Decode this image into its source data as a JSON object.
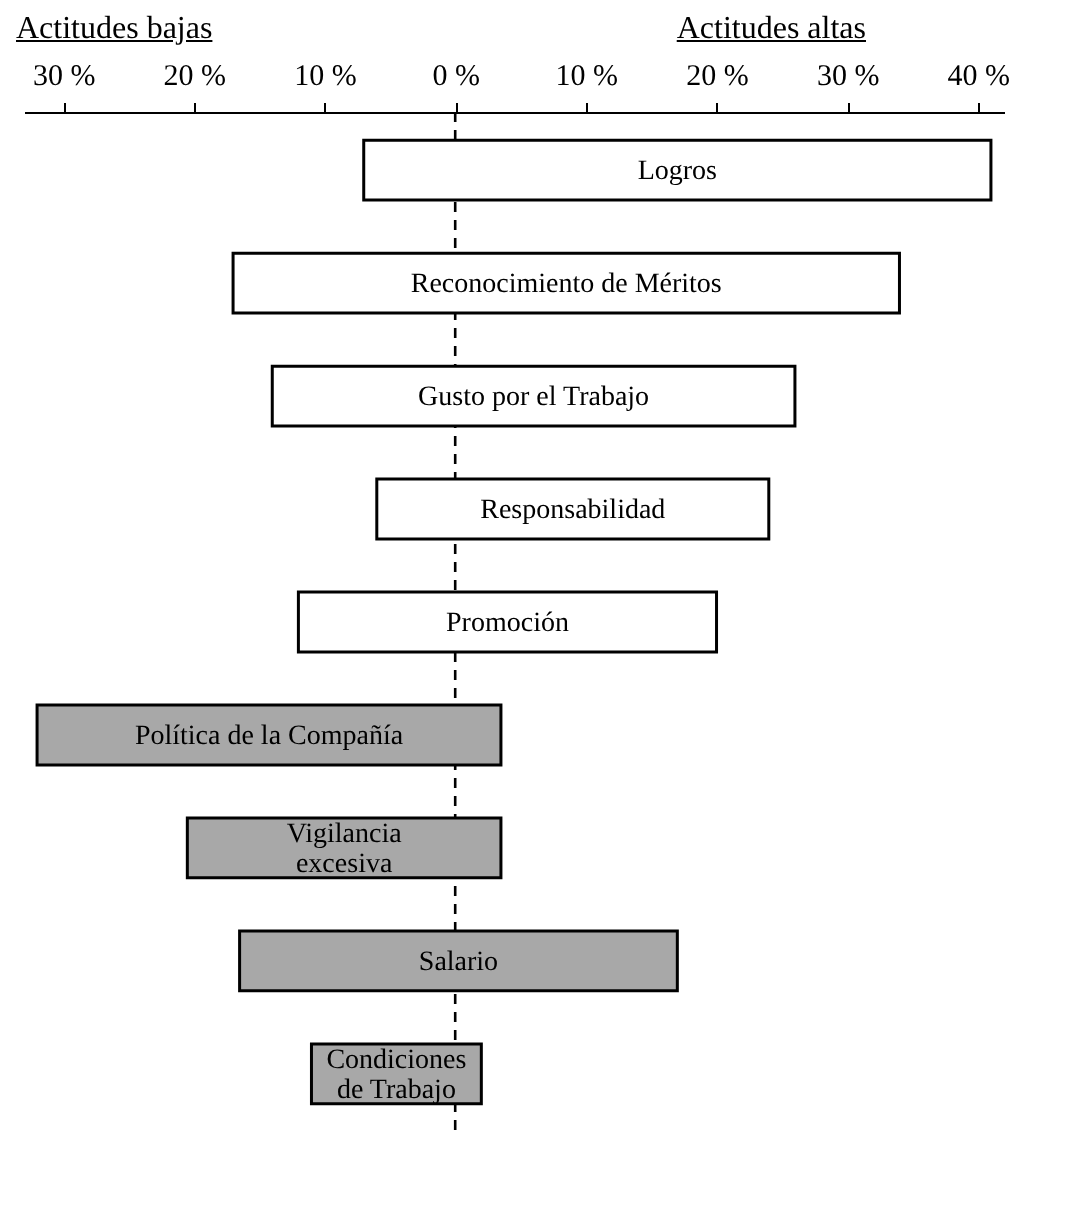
{
  "chart_data": {
    "type": "bar",
    "orientation": "horizontal",
    "categories": [
      "Logros",
      "Reconocimiento de Méritos",
      "Gusto por el Trabajo",
      "Responsabilidad",
      "Promoción",
      "Política de la Compañía",
      "Vigilancia\nexcesiva",
      "Salario",
      "Condiciones\nde Trabajo"
    ],
    "base": [
      -7,
      -17,
      -14,
      -6,
      -12,
      -32,
      -20.5,
      -16.5,
      -11
    ],
    "values": [
      48,
      51,
      40,
      30,
      32,
      35.5,
      24,
      33.5,
      13
    ],
    "colors": [
      "#ffffff",
      "#ffffff",
      "#ffffff",
      "#ffffff",
      "#ffffff",
      "#a8a8a8",
      "#a8a8a8",
      "#a8a8a8",
      "#a8a8a8"
    ],
    "xlim": [
      -33,
      42
    ],
    "xticks": [
      {
        "value": -30,
        "label": "30 %"
      },
      {
        "value": -20,
        "label": "20 %"
      },
      {
        "value": -10,
        "label": "10 %"
      },
      {
        "value": 0,
        "label": "0 %"
      },
      {
        "value": 10,
        "label": "10 %"
      },
      {
        "value": 20,
        "label": "20 %"
      },
      {
        "value": 30,
        "label": "30 %"
      },
      {
        "value": 40,
        "label": "40 %"
      }
    ],
    "ref_lines": [
      {
        "axis": "x",
        "value": 0,
        "line_style": "dashed"
      }
    ],
    "annotations": [
      "Actitudes bajas",
      "Actitudes altas"
    ],
    "grid": false,
    "legend": false
  }
}
